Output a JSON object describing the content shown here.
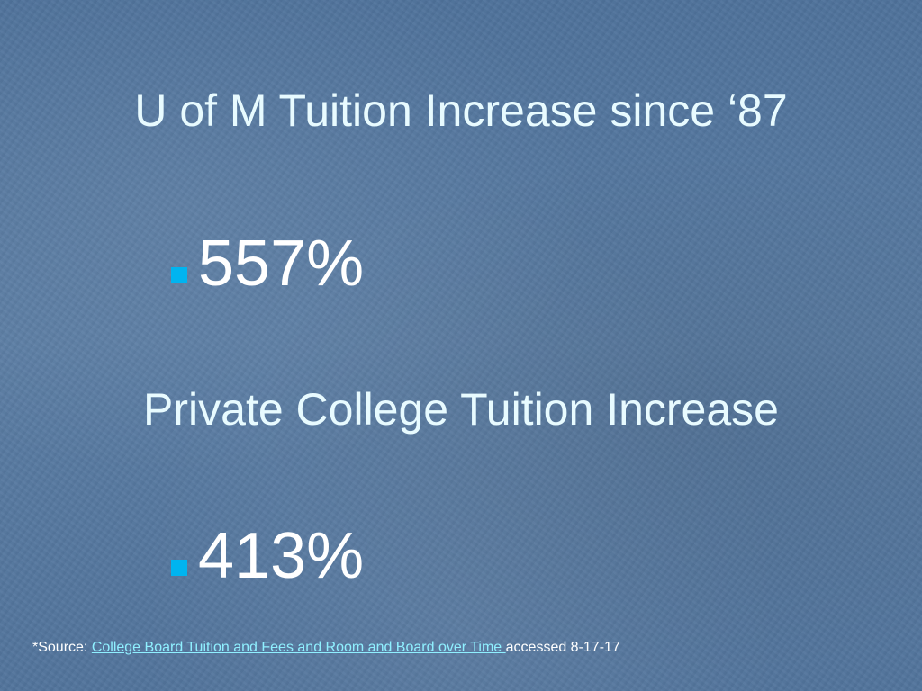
{
  "slide": {
    "title": "U of M Tuition Increase since ‘87",
    "bullet_1": "557%",
    "subtitle": "Private College Tuition Increase",
    "bullet_2": "413%",
    "source": {
      "prefix": "*Source: ",
      "link_text": "College Board Tuition and Fees and Room and Board over Time ",
      "suffix": "accessed 8-17-17"
    }
  },
  "colors": {
    "background": "#56789f",
    "heading_text": "#e8fbff",
    "bullet_marker": "#00b4f0",
    "link": "#8ff0ff"
  }
}
